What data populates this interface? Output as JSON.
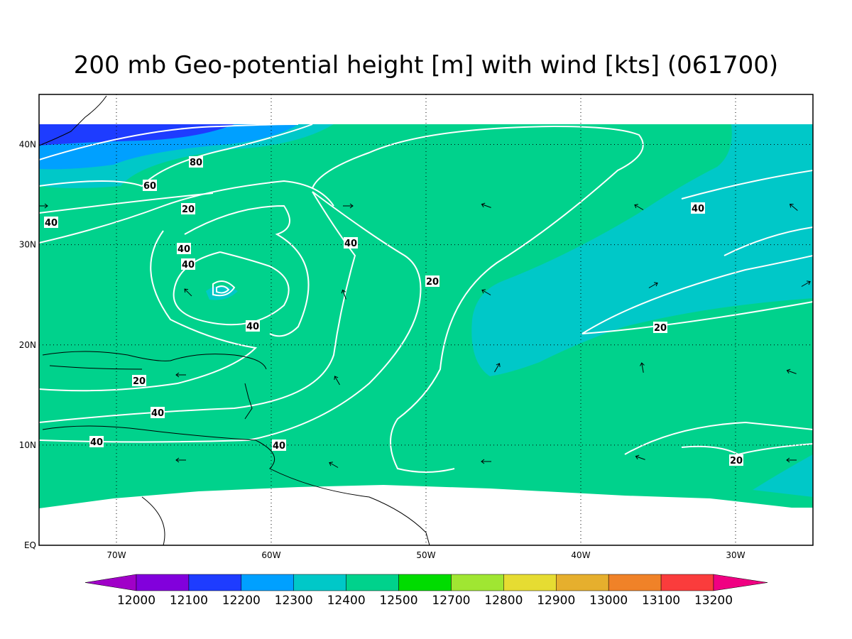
{
  "title": "200 mb Geo-potential height [m] with wind [kts] (061700)",
  "lon_range": [
    -75,
    -25
  ],
  "lat_range": [
    0,
    45
  ],
  "lon_ticks": [
    {
      "value": -70,
      "label": "70W"
    },
    {
      "value": -60,
      "label": "60W"
    },
    {
      "value": -50,
      "label": "50W"
    },
    {
      "value": -40,
      "label": "40W"
    },
    {
      "value": -30,
      "label": "30W"
    }
  ],
  "lat_ticks": [
    {
      "value": 0,
      "label": "EQ"
    },
    {
      "value": 10,
      "label": "10N"
    },
    {
      "value": 20,
      "label": "20N"
    },
    {
      "value": 30,
      "label": "30N"
    },
    {
      "value": 40,
      "label": "40N"
    }
  ],
  "colorbar": {
    "labels": [
      12000,
      12100,
      12200,
      12300,
      12400,
      12500,
      12700,
      12800,
      12900,
      13000,
      13100,
      13200
    ],
    "colors": [
      "#a000c8",
      "#8200dc",
      "#1e3cff",
      "#00a0ff",
      "#00c8c8",
      "#00d28c",
      "#00dc00",
      "#a0e632",
      "#e6dc32",
      "#e6af2d",
      "#f08228",
      "#fa3c3c",
      "#f00082"
    ]
  },
  "contour_labels": [
    80,
    60,
    40,
    20,
    40,
    40,
    40,
    40,
    20,
    40,
    20,
    20,
    40,
    40,
    40,
    20
  ]
}
